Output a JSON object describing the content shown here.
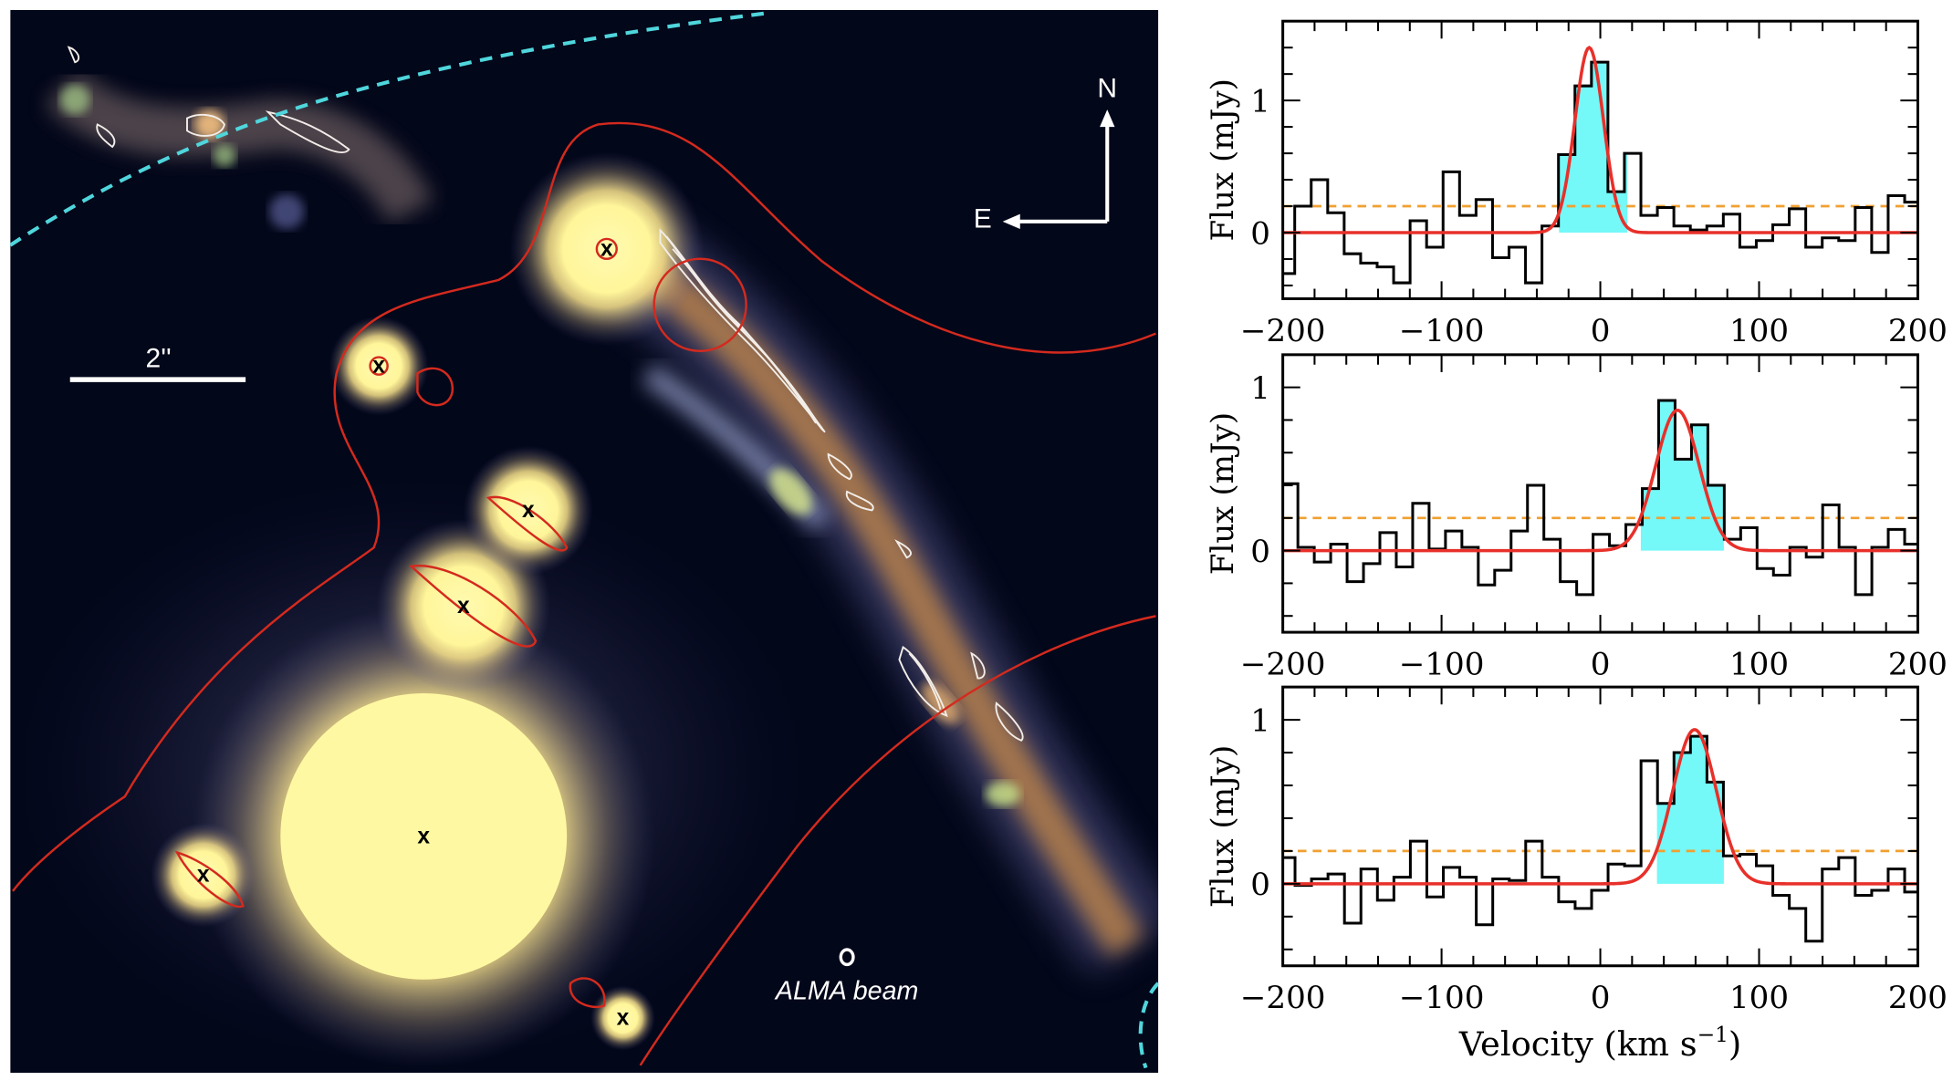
{
  "image_panel": {
    "scale_bar_label": "2''",
    "compass_north": "N",
    "compass_east": "E",
    "beam_label": "ALMA beam",
    "marker_symbol": "x",
    "colors": {
      "background": "#03071a",
      "contour_red": "#d42a1e",
      "dashed_cyan": "#4fd6dc",
      "contour_white": "#f2ede8",
      "source_yellow": "#fff7a0"
    }
  },
  "chart_data": [
    {
      "type": "line",
      "style": "step",
      "xlabel": "",
      "ylabel": "Flux (mJy)",
      "xlim": [
        -200,
        200
      ],
      "ylim": [
        -0.5,
        1.6
      ],
      "xticks": [
        "−200",
        "−100",
        "0",
        "100",
        "200"
      ],
      "xtick_values": [
        -200,
        -100,
        0,
        100,
        200
      ],
      "yticks": [
        "0",
        "1"
      ],
      "ytick_values": [
        0,
        1
      ],
      "first_edge": -192.5,
      "last_edge": 191.7,
      "values": [
        -0.31,
        0.2,
        0.4,
        0.15,
        -0.16,
        -0.23,
        -0.26,
        -0.38,
        0.09,
        -0.11,
        0.46,
        0.13,
        0.25,
        -0.19,
        -0.11,
        -0.38,
        0.05,
        0.59,
        1.11,
        1.29,
        0.31,
        0.6,
        0.13,
        0.19,
        0.05,
        0.02,
        0.05,
        0.14,
        -0.11,
        -0.06,
        0.06,
        0.18,
        -0.11,
        -0.04,
        -0.06,
        0.19,
        -0.15,
        0.28,
        0.23
      ],
      "gaussian_fit": {
        "amplitude": 1.4,
        "center": -7,
        "sigma": 9
      },
      "shaded_range": [
        -26,
        17
      ],
      "threshold": 0.2
    },
    {
      "type": "line",
      "style": "step",
      "xlabel": "",
      "ylabel": "Flux (mJy)",
      "xlim": [
        -200,
        200
      ],
      "ylim": [
        -0.5,
        1.2
      ],
      "xticks": [
        "−200",
        "−100",
        "0",
        "100",
        "200"
      ],
      "xtick_values": [
        -200,
        -100,
        0,
        100,
        200
      ],
      "yticks": [
        "0",
        "1"
      ],
      "ytick_values": [
        0,
        1
      ],
      "first_edge": -190.5,
      "last_edge": 191.7,
      "values": [
        0.41,
        0.02,
        -0.07,
        0.04,
        -0.19,
        -0.08,
        0.11,
        -0.1,
        0.29,
        0.01,
        0.12,
        0.02,
        -0.21,
        -0.12,
        0.12,
        0.4,
        0.07,
        -0.19,
        -0.27,
        0.1,
        0.03,
        0.16,
        0.38,
        0.92,
        0.56,
        0.77,
        0.4,
        0.07,
        0.14,
        -0.11,
        -0.15,
        0.02,
        -0.04,
        0.28,
        0.02,
        -0.27,
        0.02,
        0.13,
        0.04
      ],
      "gaussian_fit": {
        "amplitude": 0.86,
        "center": 48.6,
        "sigma": 13.7
      },
      "shaded_range": [
        25.5,
        77.8
      ],
      "threshold": 0.2
    },
    {
      "type": "line",
      "style": "step",
      "xlabel": "Velocity (km s⁻¹)",
      "xlabel_main": "Velocity (km s",
      "xlabel_sup": "−1",
      "xlabel_close": ")",
      "ylabel": "Flux (mJy)",
      "xlim": [
        -200,
        200
      ],
      "ylim": [
        -0.5,
        1.2
      ],
      "xticks": [
        "−200",
        "−100",
        "0",
        "100",
        "200"
      ],
      "xtick_values": [
        -200,
        -100,
        0,
        100,
        200
      ],
      "yticks": [
        "0",
        "1"
      ],
      "ytick_values": [
        0,
        1
      ],
      "first_edge": -192.3,
      "last_edge": 191.7,
      "values": [
        0.16,
        -0.01,
        0.03,
        0.06,
        -0.24,
        0.09,
        -0.1,
        0.04,
        0.26,
        -0.08,
        0.1,
        0.04,
        -0.25,
        0.03,
        0.02,
        0.26,
        0.04,
        -0.11,
        -0.15,
        -0.04,
        0.12,
        0.11,
        0.75,
        0.49,
        0.8,
        0.9,
        0.62,
        0.17,
        0.18,
        0.11,
        -0.07,
        -0.15,
        -0.35,
        0.09,
        0.16,
        -0.07,
        -0.04,
        0.09,
        -0.05
      ],
      "gaussian_fit": {
        "amplitude": 0.94,
        "center": 59.4,
        "sigma": 13.7
      },
      "shaded_range": [
        35.7,
        77.8
      ],
      "threshold": 0.2
    }
  ]
}
